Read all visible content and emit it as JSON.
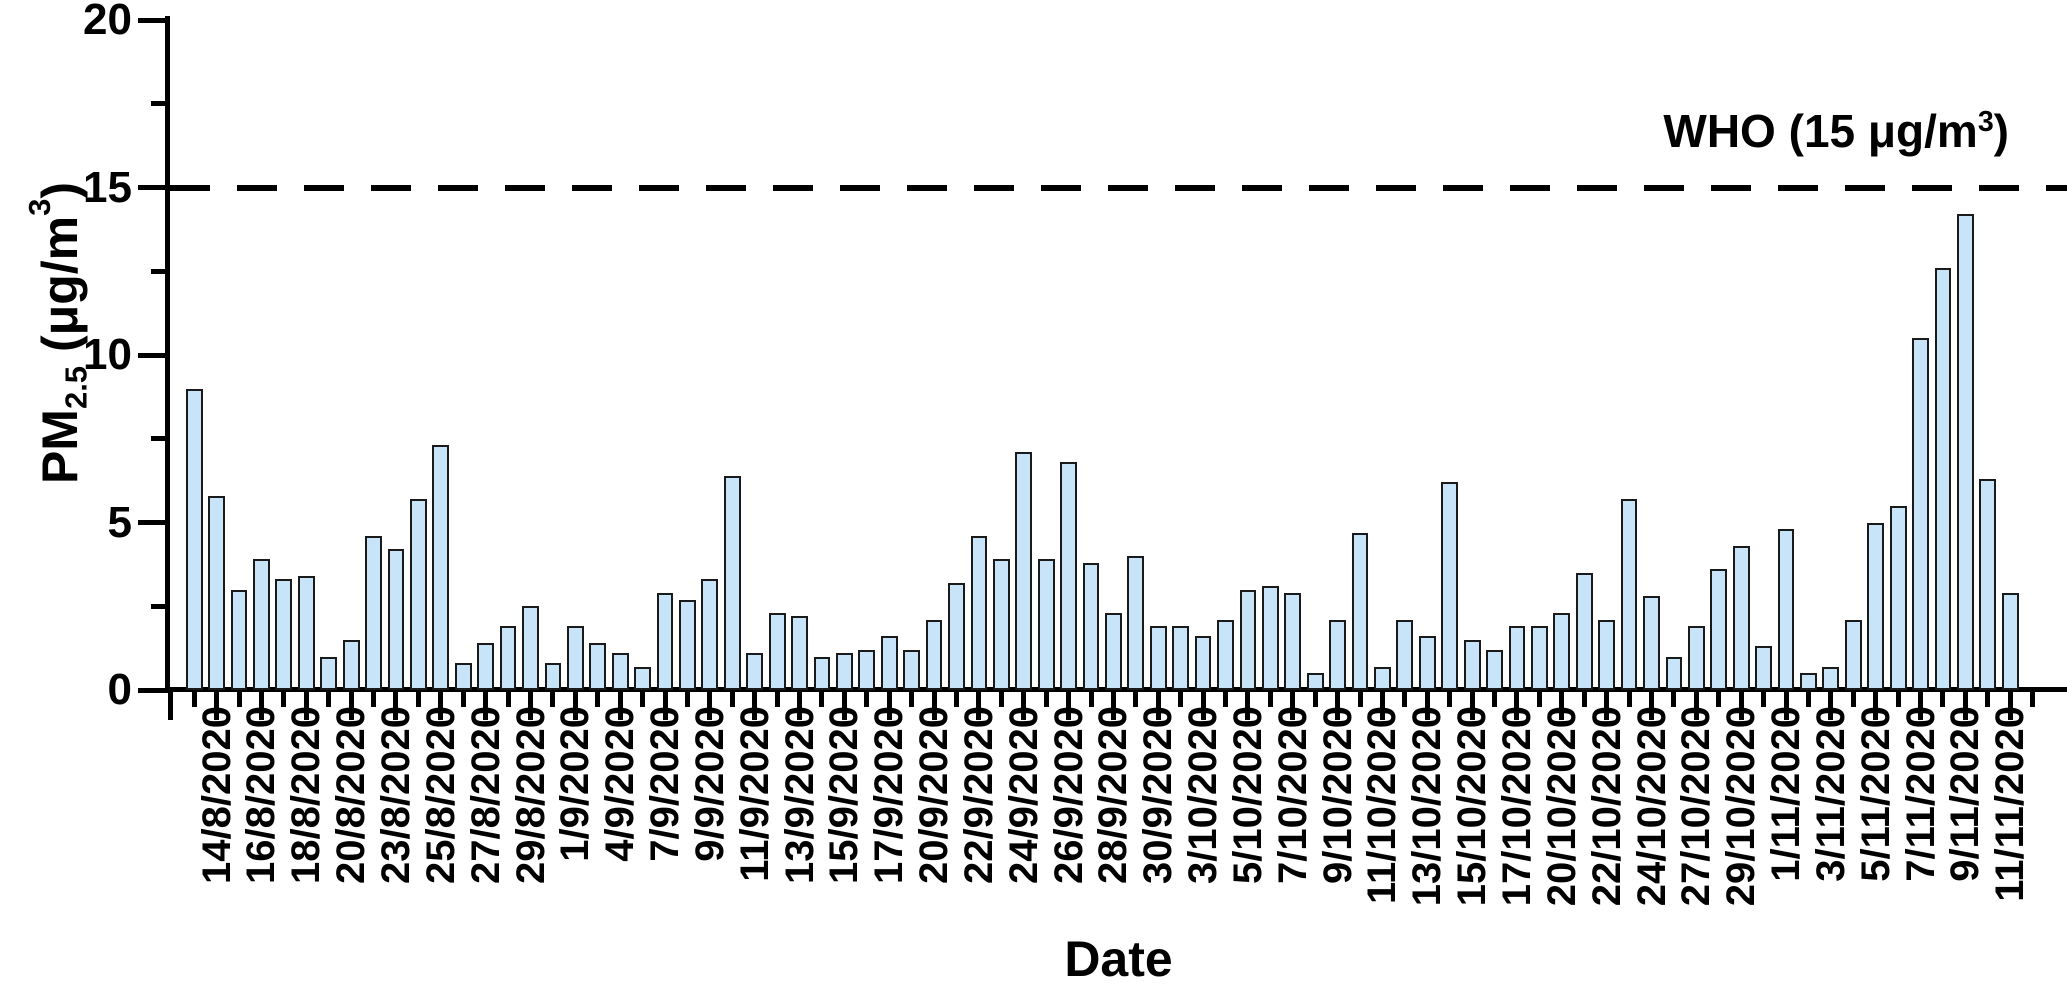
{
  "chart_data": {
    "type": "bar",
    "title": "",
    "xlabel": "Date",
    "ylabel_parts": {
      "base": "PM",
      "sub": "2.5",
      "mid": " (μg/m",
      "sup": "3",
      "end": ")"
    },
    "ylim": [
      0,
      20
    ],
    "yticks_major": [
      0,
      5,
      10,
      15,
      20
    ],
    "yticks_minor": [
      2.5,
      7.5,
      12.5,
      17.5
    ],
    "grid": false,
    "legend": "none",
    "bar_color": "#C8E4F8",
    "bar_edge_color": "#1a1a1a",
    "reference_line": {
      "value": 15,
      "style": "dashed",
      "color": "#000000",
      "label_parts": {
        "prefix": "WHO (15 μg/m",
        "sup": "3",
        "suffix": ")"
      }
    },
    "bars": [
      {
        "label": "",
        "value": 9.0
      },
      {
        "label": "14/8/2020",
        "value": 5.8
      },
      {
        "label": "",
        "value": 3.0
      },
      {
        "label": "16/8/2020",
        "value": 3.9
      },
      {
        "label": "",
        "value": 3.3
      },
      {
        "label": "18/8/2020",
        "value": 3.4
      },
      {
        "label": "",
        "value": 1.0
      },
      {
        "label": "20/8/2020",
        "value": 1.5
      },
      {
        "label": "",
        "value": 4.6
      },
      {
        "label": "23/8/2020",
        "value": 4.2
      },
      {
        "label": "",
        "value": 5.7
      },
      {
        "label": "25/8/2020",
        "value": 7.3
      },
      {
        "label": "",
        "value": 0.8
      },
      {
        "label": "27/8/2020",
        "value": 1.4
      },
      {
        "label": "",
        "value": 1.9
      },
      {
        "label": "29/8/2020",
        "value": 2.5
      },
      {
        "label": "",
        "value": 0.8
      },
      {
        "label": "1/9/2020",
        "value": 1.9
      },
      {
        "label": "",
        "value": 1.4
      },
      {
        "label": "4/9/2020",
        "value": 1.1
      },
      {
        "label": "",
        "value": 0.7
      },
      {
        "label": "7/9/2020",
        "value": 2.9
      },
      {
        "label": "",
        "value": 2.7
      },
      {
        "label": "9/9/2020",
        "value": 3.3
      },
      {
        "label": "",
        "value": 6.4
      },
      {
        "label": "11/9/2020",
        "value": 1.1
      },
      {
        "label": "",
        "value": 2.3
      },
      {
        "label": "13/9/2020",
        "value": 2.2
      },
      {
        "label": "",
        "value": 1.0
      },
      {
        "label": "15/9/2020",
        "value": 1.1
      },
      {
        "label": "",
        "value": 1.2
      },
      {
        "label": "17/9/2020",
        "value": 1.6
      },
      {
        "label": "",
        "value": 1.2
      },
      {
        "label": "20/9/2020",
        "value": 2.1
      },
      {
        "label": "",
        "value": 3.2
      },
      {
        "label": "22/9/2020",
        "value": 4.6
      },
      {
        "label": "",
        "value": 3.9
      },
      {
        "label": "24/9/2020",
        "value": 7.1
      },
      {
        "label": "",
        "value": 3.9
      },
      {
        "label": "26/9/2020",
        "value": 6.8
      },
      {
        "label": "",
        "value": 3.8
      },
      {
        "label": "28/9/2020",
        "value": 2.3
      },
      {
        "label": "",
        "value": 4.0
      },
      {
        "label": "30/9/2020",
        "value": 1.9
      },
      {
        "label": "",
        "value": 1.9
      },
      {
        "label": "3/10/2020",
        "value": 1.6
      },
      {
        "label": "",
        "value": 2.1
      },
      {
        "label": "5/10/2020",
        "value": 3.0
      },
      {
        "label": "",
        "value": 3.1
      },
      {
        "label": "7/10/2020",
        "value": 2.9
      },
      {
        "label": "",
        "value": 0.5
      },
      {
        "label": "9/10/2020",
        "value": 2.1
      },
      {
        "label": "",
        "value": 4.7
      },
      {
        "label": "11/10/2020",
        "value": 0.7
      },
      {
        "label": "",
        "value": 2.1
      },
      {
        "label": "13/10/2020",
        "value": 1.6
      },
      {
        "label": "",
        "value": 6.2
      },
      {
        "label": "15/10/2020",
        "value": 1.5
      },
      {
        "label": "",
        "value": 1.2
      },
      {
        "label": "17/10/2020",
        "value": 1.9
      },
      {
        "label": "",
        "value": 1.9
      },
      {
        "label": "20/10/2020",
        "value": 2.3
      },
      {
        "label": "",
        "value": 3.5
      },
      {
        "label": "22/10/2020",
        "value": 2.1
      },
      {
        "label": "",
        "value": 5.7
      },
      {
        "label": "24/10/2020",
        "value": 2.8
      },
      {
        "label": "",
        "value": 1.0
      },
      {
        "label": "27/10/2020",
        "value": 1.9
      },
      {
        "label": "",
        "value": 3.6
      },
      {
        "label": "29/10/2020",
        "value": 4.3
      },
      {
        "label": "",
        "value": 1.3
      },
      {
        "label": "1/11/2020",
        "value": 4.8
      },
      {
        "label": "",
        "value": 0.5
      },
      {
        "label": "3/11/2020",
        "value": 0.7
      },
      {
        "label": "",
        "value": 2.1
      },
      {
        "label": "5/11/2020",
        "value": 5.0
      },
      {
        "label": "",
        "value": 5.5
      },
      {
        "label": "7/11/2020",
        "value": 10.5
      },
      {
        "label": "",
        "value": 12.6
      },
      {
        "label": "9/11/2020",
        "value": 14.2
      },
      {
        "label": "",
        "value": 6.3
      },
      {
        "label": "11/11/2020",
        "value": 2.9
      }
    ]
  }
}
